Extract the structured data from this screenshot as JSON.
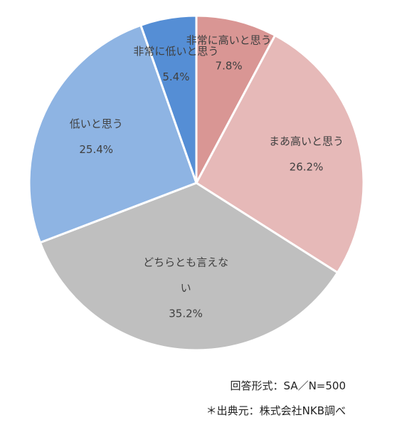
{
  "chart_data": {
    "type": "pie",
    "title": "",
    "start_angle_deg": 0,
    "direction": "clockwise",
    "slices": [
      {
        "label": "非常に高いと思う",
        "value": 7.8,
        "value_label": "7.8%",
        "color": "#d99694"
      },
      {
        "label": "まあ高いと思う",
        "value": 26.2,
        "value_label": "26.2%",
        "color": "#e6b9b8"
      },
      {
        "label": "どちらとも言えない",
        "label_lines": [
          "どちらとも言えな",
          "い"
        ],
        "value": 35.2,
        "value_label": "35.2%",
        "color": "#bfbfbf"
      },
      {
        "label": "低いと思う",
        "value": 25.4,
        "value_label": "25.4%",
        "color": "#8eb4e3"
      },
      {
        "label": "非常に低いと思う",
        "value": 5.4,
        "value_label": "5.4%",
        "color": "#558ed5"
      }
    ]
  },
  "notes": {
    "survey": "回答形式：SA／N=500",
    "source": "＊出典元：株式会社NKB調べ"
  }
}
